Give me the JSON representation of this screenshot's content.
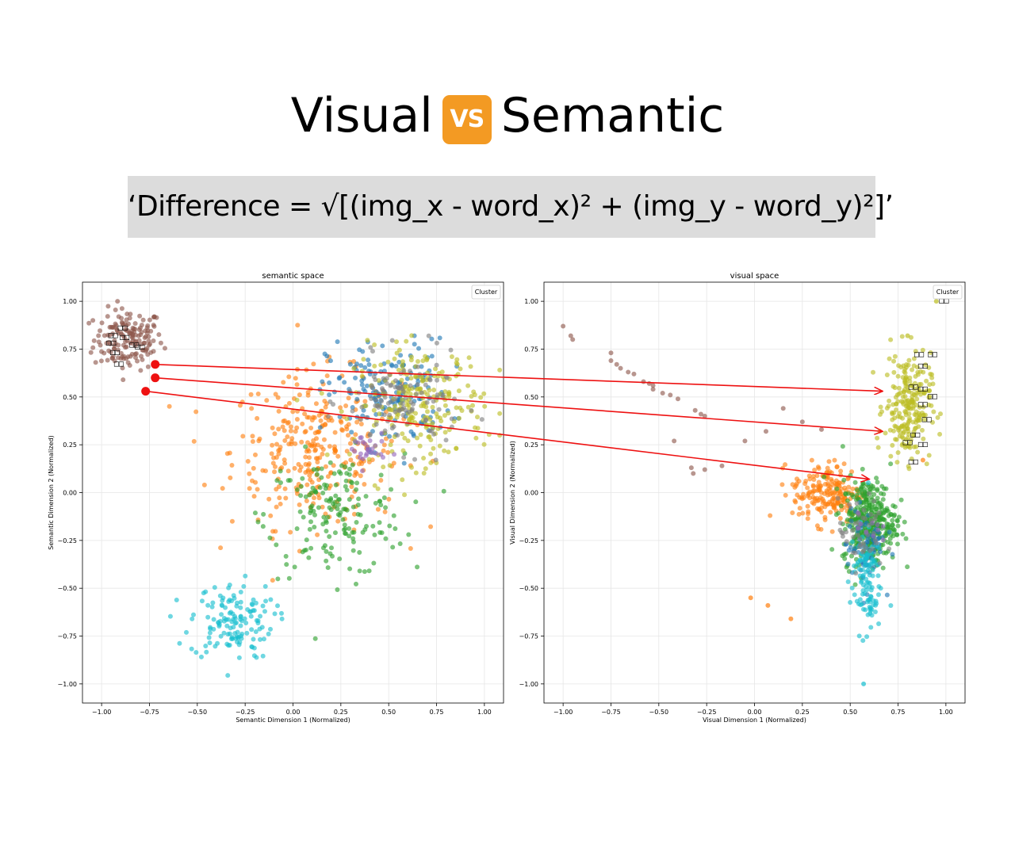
{
  "header": {
    "title_left": "Visual",
    "vs_badge": "VS",
    "title_right": "Semantic",
    "formula": "‘Difference = √[(img_x - word_x)² + (img_y - word_y)²]’"
  },
  "colors": {
    "background": "#ffffff",
    "formula_bg": "#dcdcdc",
    "arrow": "#ee1111",
    "clusters": {
      "blue": "#1f77b4",
      "orange": "#ff7f0e",
      "green": "#2ca02c",
      "purple": "#9467bd",
      "brown": "#8c564b",
      "gray": "#7f7f7f",
      "olive": "#bcbd22",
      "cyan": "#17becf"
    }
  },
  "chart_data": [
    {
      "type": "scatter",
      "title": "semantic space",
      "xlabel": "Semantic Dimension 1 (Normalized)",
      "ylabel": "Semantic Dimension 2 (Normalized)",
      "xlim": [
        -1.1,
        1.1
      ],
      "ylim": [
        -1.1,
        1.1
      ],
      "xticks": [
        -1.0,
        -0.75,
        -0.5,
        -0.25,
        0.0,
        0.25,
        0.5,
        0.75,
        1.0
      ],
      "yticks": [
        -1.0,
        -0.75,
        -0.5,
        -0.25,
        0.0,
        0.25,
        0.5,
        0.75,
        1.0
      ],
      "xtick_labels": [
        "−1.00",
        "−0.75",
        "−0.50",
        "−0.25",
        "0.00",
        "0.25",
        "0.50",
        "0.75",
        "1.00"
      ],
      "ytick_labels": [
        "−1.00",
        "−0.75",
        "−0.50",
        "−0.25",
        "0.00",
        "0.25",
        "0.50",
        "0.75",
        "1.00"
      ],
      "grid": true,
      "legend": {
        "title": "Cluster",
        "placement": "top-right"
      },
      "clusters": [
        {
          "color": "brown",
          "center": [
            -0.86,
            0.8
          ],
          "spread": [
            0.09,
            0.08
          ],
          "count": 160
        },
        {
          "color": "orange",
          "center": [
            0.12,
            0.22
          ],
          "spread": [
            0.22,
            0.2
          ],
          "count": 320
        },
        {
          "color": "green",
          "center": [
            0.22,
            -0.12
          ],
          "spread": [
            0.18,
            0.16
          ],
          "count": 170
        },
        {
          "color": "cyan",
          "center": [
            -0.32,
            -0.67
          ],
          "spread": [
            0.11,
            0.1
          ],
          "count": 140
        },
        {
          "color": "blue",
          "center": [
            0.5,
            0.52
          ],
          "spread": [
            0.16,
            0.14
          ],
          "count": 160
        },
        {
          "color": "olive",
          "center": [
            0.66,
            0.46
          ],
          "spread": [
            0.17,
            0.15
          ],
          "count": 240
        },
        {
          "color": "gray",
          "center": [
            0.58,
            0.47
          ],
          "spread": [
            0.15,
            0.12
          ],
          "count": 110
        },
        {
          "color": "purple",
          "center": [
            0.38,
            0.22
          ],
          "spread": [
            0.05,
            0.05
          ],
          "count": 28
        }
      ],
      "highlighted_points": [
        {
          "x": -0.72,
          "y": 0.67
        },
        {
          "x": -0.72,
          "y": 0.6
        },
        {
          "x": -0.77,
          "y": 0.53
        }
      ],
      "word_labels": [
        {
          "x": -0.89,
          "y": 0.85,
          "text": "□□"
        },
        {
          "x": -0.94,
          "y": 0.81,
          "text": "□□"
        },
        {
          "x": -0.88,
          "y": 0.8,
          "text": "□□"
        },
        {
          "x": -0.95,
          "y": 0.77,
          "text": "□□"
        },
        {
          "x": -0.83,
          "y": 0.76,
          "text": "□□"
        },
        {
          "x": -0.8,
          "y": 0.75,
          "text": "□□"
        },
        {
          "x": -0.93,
          "y": 0.72,
          "text": "□□"
        },
        {
          "x": -0.91,
          "y": 0.66,
          "text": "□□"
        }
      ]
    },
    {
      "type": "scatter",
      "title": "visual space",
      "xlabel": "Visual Dimension 1 (Normalized)",
      "ylabel": "Visual Dimension 2 (Normalized)",
      "xlim": [
        -1.1,
        1.1
      ],
      "ylim": [
        -1.1,
        1.1
      ],
      "xticks": [
        -1.0,
        -0.75,
        -0.5,
        -0.25,
        0.0,
        0.25,
        0.5,
        0.75,
        1.0
      ],
      "yticks": [
        -1.0,
        -0.75,
        -0.5,
        -0.25,
        0.0,
        0.25,
        0.5,
        0.75,
        1.0
      ],
      "xtick_labels": [
        "−1.00",
        "−0.75",
        "−0.50",
        "−0.25",
        "0.00",
        "0.25",
        "0.50",
        "0.75",
        "1.00"
      ],
      "ytick_labels": [
        "−1.00",
        "−0.75",
        "−0.50",
        "−0.25",
        "0.00",
        "0.25",
        "0.50",
        "0.75",
        "1.00"
      ],
      "grid": true,
      "legend": {
        "title": "Cluster",
        "placement": "top-right"
      },
      "clusters": [
        {
          "color": "olive",
          "center": [
            0.8,
            0.45
          ],
          "spread": [
            0.06,
            0.14
          ],
          "count": 230
        },
        {
          "color": "orange",
          "center": [
            0.38,
            0.0
          ],
          "spread": [
            0.09,
            0.08
          ],
          "count": 200
        },
        {
          "color": "green",
          "center": [
            0.6,
            -0.15
          ],
          "spread": [
            0.07,
            0.11
          ],
          "count": 360
        },
        {
          "color": "blue",
          "center": [
            0.58,
            -0.28
          ],
          "spread": [
            0.05,
            0.1
          ],
          "count": 70
        },
        {
          "color": "cyan",
          "center": [
            0.58,
            -0.45
          ],
          "spread": [
            0.04,
            0.14
          ],
          "count": 110
        },
        {
          "color": "gray",
          "center": [
            0.56,
            -0.22
          ],
          "spread": [
            0.06,
            0.09
          ],
          "count": 50
        },
        {
          "color": "purple",
          "center": [
            0.6,
            -0.18
          ],
          "spread": [
            0.03,
            0.04
          ],
          "count": 10
        }
      ],
      "brown_trail": [
        [
          -1.0,
          0.87
        ],
        [
          -0.96,
          0.82
        ],
        [
          -0.95,
          0.8
        ],
        [
          -0.75,
          0.73
        ],
        [
          -0.75,
          0.69
        ],
        [
          -0.72,
          0.67
        ],
        [
          -0.7,
          0.65
        ],
        [
          -0.66,
          0.63
        ],
        [
          -0.63,
          0.62
        ],
        [
          -0.58,
          0.58
        ],
        [
          -0.55,
          0.57
        ],
        [
          -0.53,
          0.56
        ],
        [
          -0.53,
          0.54
        ],
        [
          -0.48,
          0.52
        ],
        [
          -0.44,
          0.51
        ],
        [
          -0.4,
          0.49
        ],
        [
          -0.31,
          0.43
        ],
        [
          -0.28,
          0.41
        ],
        [
          -0.26,
          0.4
        ],
        [
          -0.42,
          0.27
        ],
        [
          -0.33,
          0.13
        ],
        [
          -0.32,
          0.1
        ],
        [
          -0.26,
          0.12
        ],
        [
          -0.17,
          0.14
        ],
        [
          -0.05,
          0.27
        ],
        [
          0.06,
          0.32
        ],
        [
          0.15,
          0.44
        ],
        [
          0.25,
          0.37
        ],
        [
          0.35,
          0.33
        ]
      ],
      "outliers": [
        {
          "x": 0.95,
          "y": 1.0,
          "color": "olive"
        },
        {
          "x": 0.8,
          "y": 0.82,
          "color": "olive"
        },
        {
          "x": -0.02,
          "y": -0.55,
          "color": "orange"
        },
        {
          "x": 0.07,
          "y": -0.59,
          "color": "orange"
        },
        {
          "x": 0.19,
          "y": -0.66,
          "color": "orange"
        },
        {
          "x": 0.57,
          "y": -1.0,
          "color": "cyan"
        },
        {
          "x": 0.88,
          "y": 0.17,
          "color": "orange"
        }
      ],
      "arrow_targets": [
        {
          "x": 0.67,
          "y": 0.53
        },
        {
          "x": 0.67,
          "y": 0.32
        },
        {
          "x": 0.6,
          "y": 0.07
        }
      ],
      "word_labels": [
        {
          "x": 0.99,
          "y": 0.99,
          "text": "□□"
        },
        {
          "x": 0.86,
          "y": 0.71,
          "text": "□□"
        },
        {
          "x": 0.93,
          "y": 0.71,
          "text": "□□"
        },
        {
          "x": 0.88,
          "y": 0.65,
          "text": "□□"
        },
        {
          "x": 0.83,
          "y": 0.54,
          "text": "□□"
        },
        {
          "x": 0.88,
          "y": 0.53,
          "text": "□□"
        },
        {
          "x": 0.93,
          "y": 0.49,
          "text": "□□"
        },
        {
          "x": 0.88,
          "y": 0.45,
          "text": "□□"
        },
        {
          "x": 0.9,
          "y": 0.37,
          "text": "□□"
        },
        {
          "x": 0.84,
          "y": 0.29,
          "text": "□□"
        },
        {
          "x": 0.8,
          "y": 0.25,
          "text": "□□"
        },
        {
          "x": 0.88,
          "y": 0.24,
          "text": "□□"
        },
        {
          "x": 0.83,
          "y": 0.15,
          "text": "□□"
        }
      ]
    }
  ]
}
